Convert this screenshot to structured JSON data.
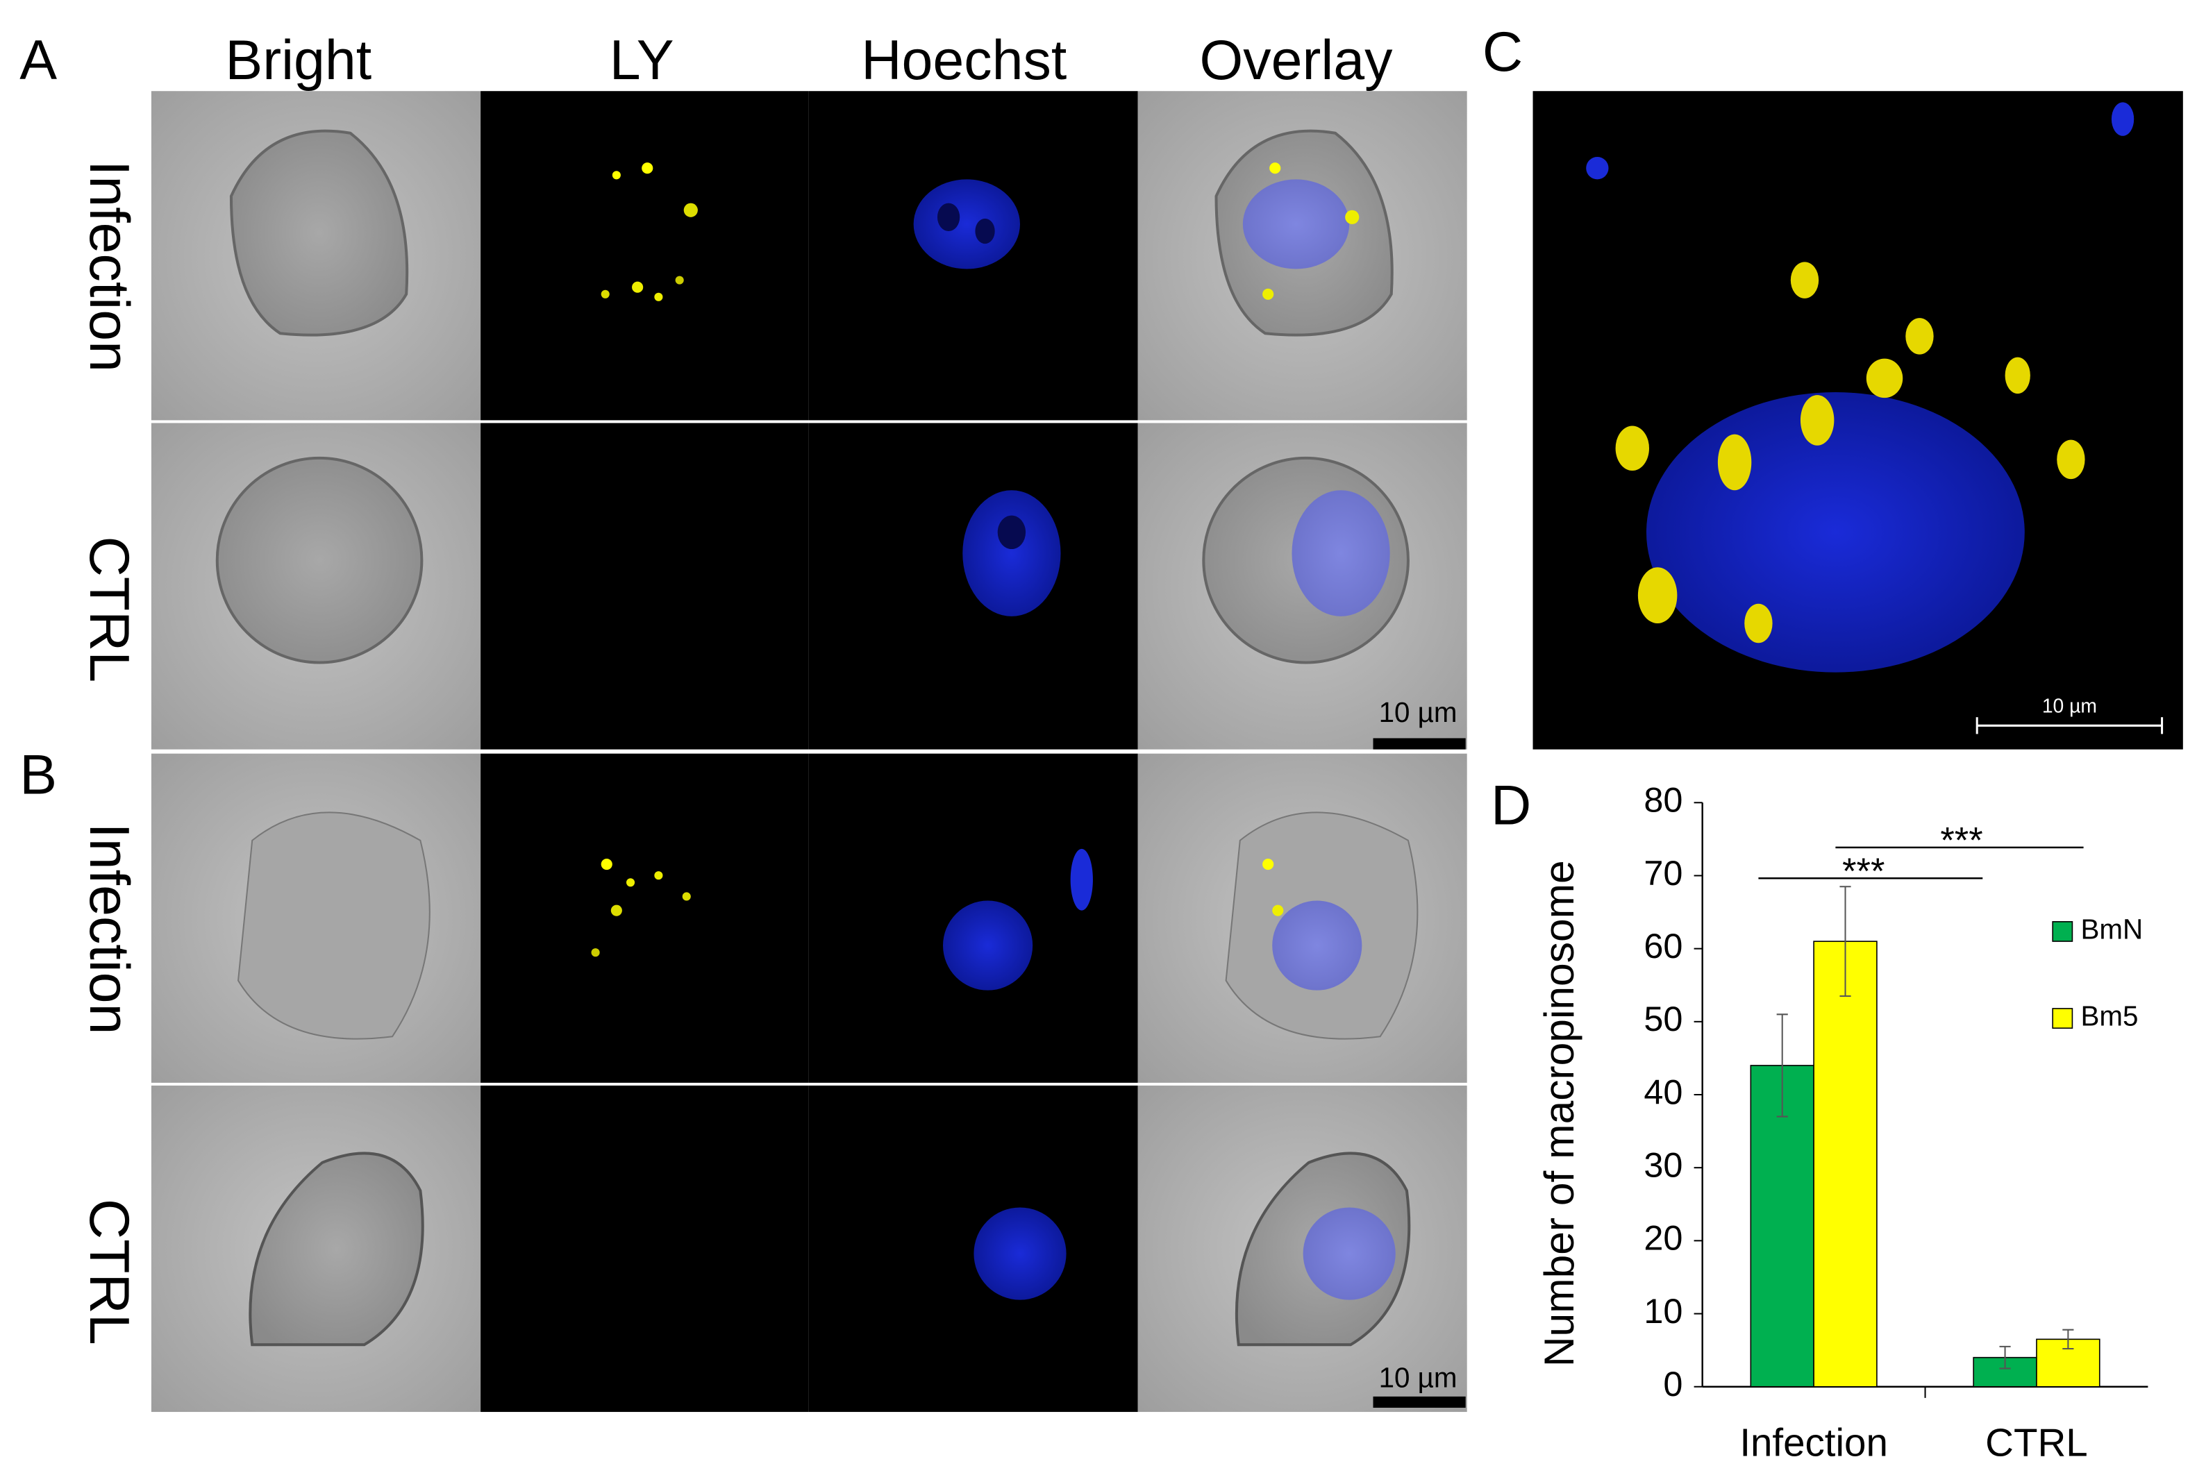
{
  "panel_labels": [
    "A",
    "B",
    "C",
    "D"
  ],
  "columns": [
    "Bright",
    "LY",
    "Hoechst",
    "Overlay"
  ],
  "rows_a": [
    "Infection",
    "CTRL"
  ],
  "rows_b": [
    "Infection",
    "CTRL"
  ],
  "scale_bars": [
    "10 µm",
    "10 µm",
    "10 µm"
  ],
  "chart_data": {
    "type": "bar",
    "ylabel": "Number of macropinosome",
    "categories": [
      "Infection",
      "CTRL"
    ],
    "series": [
      {
        "name": "BmN",
        "color": "#00b050",
        "values": [
          44,
          4
        ],
        "errors": [
          7,
          1.5
        ]
      },
      {
        "name": "Bm5",
        "color": "#ffff00",
        "values": [
          61,
          6.5
        ],
        "errors": [
          7.5,
          1.3
        ]
      }
    ],
    "ylim": [
      0,
      80
    ],
    "yticks": [
      0,
      10,
      20,
      30,
      40,
      50,
      60,
      70,
      80
    ],
    "annotations": [
      {
        "text": "***"
      },
      {
        "text": "***"
      }
    ]
  }
}
